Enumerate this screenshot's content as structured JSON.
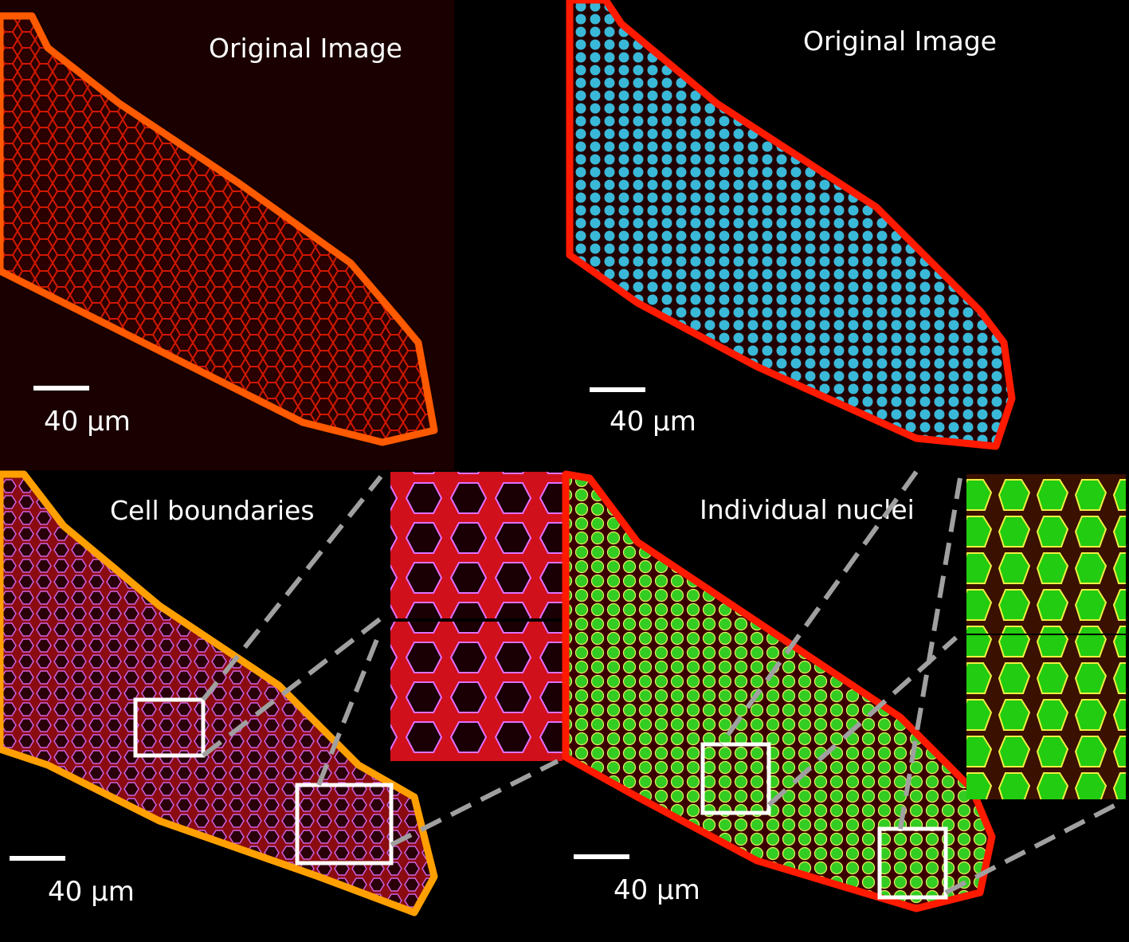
{
  "panels": {
    "top_left": {
      "label": "Original Image",
      "scale_bar": "40 μm"
    },
    "top_right": {
      "label": "Original Image",
      "scale_bar": "40  μm"
    },
    "bottom_left": {
      "label": "Cell boundaries",
      "scale_bar": "40  μm"
    },
    "bottom_right": {
      "label": "Individual nuclei",
      "scale_bar": "40  μm"
    }
  },
  "colors": {
    "membrane": "#ff2a00",
    "membrane_edge": "#ffb000",
    "nuclei": "#3ab8d8",
    "segmented_nuclei": "#33dd22",
    "boundary_outline": "#d060e0",
    "zoom_box": "#ffffff",
    "dashed_connector": "#a0a0a0"
  }
}
